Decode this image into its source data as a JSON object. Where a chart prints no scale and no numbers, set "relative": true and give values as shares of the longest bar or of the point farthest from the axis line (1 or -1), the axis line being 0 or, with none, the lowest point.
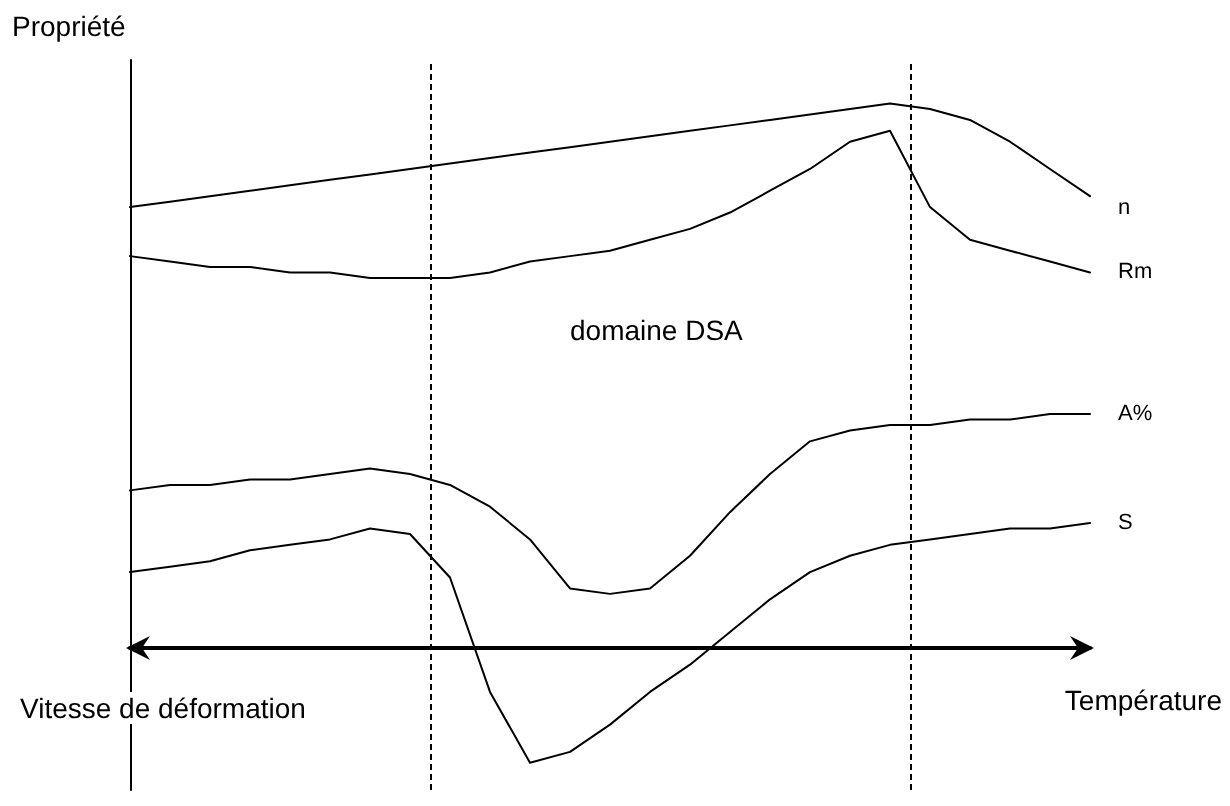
{
  "chart_data": {
    "type": "line",
    "relative": true,
    "xlabel": "Température",
    "ylabel": "Propriété",
    "tick_labels": false,
    "grid": false,
    "legend": false,
    "marker": "none",
    "line_style": "solid",
    "annotations": [
      "domaine DSA",
      "Vitesse de déformation"
    ],
    "categories": [
      null,
      null,
      null,
      null,
      null,
      null,
      null,
      null,
      null,
      null,
      null,
      null,
      null,
      null,
      null,
      null,
      null,
      null,
      null,
      null,
      null,
      null,
      null,
      null,
      null
    ],
    "series": [
      {
        "name": "n",
        "color": "#000000",
        "values": [
          0.81,
          0.82,
          0.83,
          0.84,
          0.85,
          0.86,
          0.87,
          0.88,
          0.89,
          0.9,
          0.91,
          0.92,
          0.93,
          0.94,
          0.95,
          0.96,
          0.97,
          0.98,
          0.99,
          1.0,
          0.99,
          0.97,
          0.93,
          0.88,
          0.83
        ]
      },
      {
        "name": "Rm",
        "color": "#000000",
        "values": [
          0.72,
          0.71,
          0.7,
          0.7,
          0.69,
          0.69,
          0.68,
          0.68,
          0.68,
          0.69,
          0.71,
          0.72,
          0.73,
          0.75,
          0.77,
          0.8,
          0.84,
          0.88,
          0.93,
          0.95,
          0.81,
          0.75,
          0.73,
          0.71,
          0.69
        ]
      },
      {
        "name": "A%",
        "color": "#000000",
        "values": [
          0.29,
          0.3,
          0.3,
          0.31,
          0.31,
          0.32,
          0.33,
          0.32,
          0.3,
          0.26,
          0.2,
          0.11,
          0.1,
          0.11,
          0.17,
          0.25,
          0.32,
          0.38,
          0.4,
          0.41,
          0.41,
          0.42,
          0.42,
          0.43,
          0.43
        ]
      },
      {
        "name": "S",
        "color": "#000000",
        "values": [
          0.14,
          0.15,
          0.16,
          0.18,
          0.19,
          0.2,
          0.22,
          0.21,
          0.13,
          -0.08,
          -0.21,
          -0.19,
          -0.14,
          -0.08,
          -0.03,
          0.03,
          0.09,
          0.14,
          0.17,
          0.19,
          0.2,
          0.21,
          0.22,
          0.22,
          0.23
        ]
      }
    ]
  }
}
